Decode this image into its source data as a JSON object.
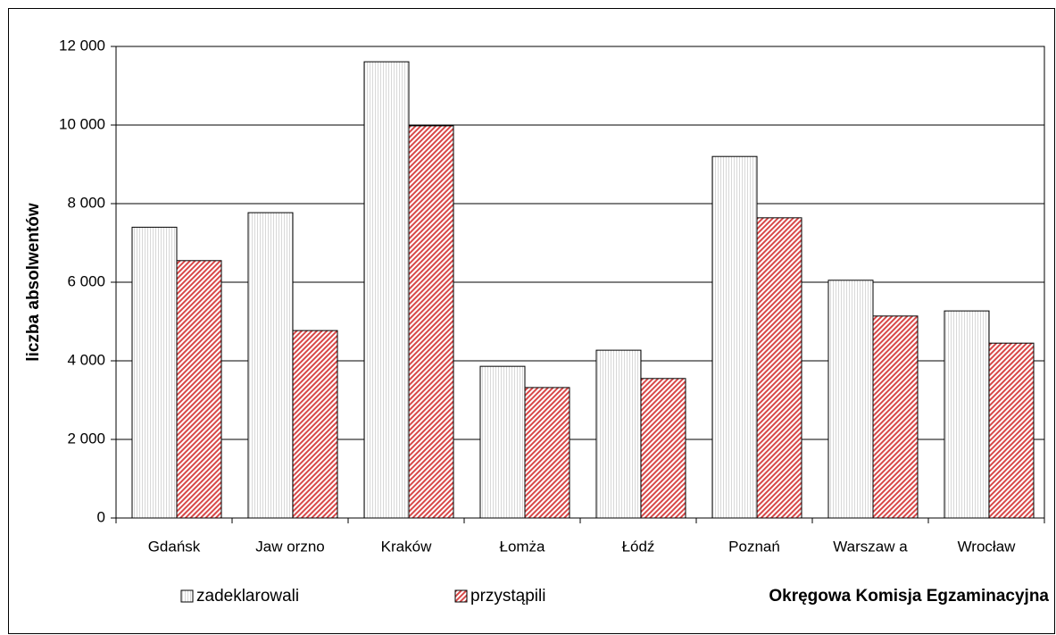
{
  "chart_data": {
    "type": "bar",
    "x_label": "Okręgowa Komisja Egzaminacyjna",
    "y_label": "liczba absolwentów",
    "categories": [
      "Gdańsk",
      "Jaw orzno",
      "Kraków",
      "Łomża",
      "Łódź",
      "Poznań",
      "Warszaw a",
      "Wrocław"
    ],
    "series": [
      {
        "name": "zadeklarowali",
        "color": "#d8d8d8",
        "values": [
          7400,
          7770,
          11610,
          3860,
          4270,
          9200,
          6050,
          5270
        ]
      },
      {
        "name": "przystąpili",
        "color": "#d84848",
        "values": [
          6550,
          4770,
          9980,
          3320,
          3550,
          7640,
          5140,
          4450
        ]
      }
    ],
    "ylim": [
      0,
      12000
    ],
    "yticks": [
      0,
      {
        "value": 2000,
        "label": "2 000"
      },
      {
        "value": 4000,
        "label": "4 000"
      },
      {
        "value": 6000,
        "label": "6 000"
      },
      {
        "value": 8000,
        "label": "8 000"
      },
      {
        "value": 10000,
        "label": "10 000"
      },
      {
        "value": 12000,
        "label": "12 000"
      }
    ],
    "grid": true
  }
}
